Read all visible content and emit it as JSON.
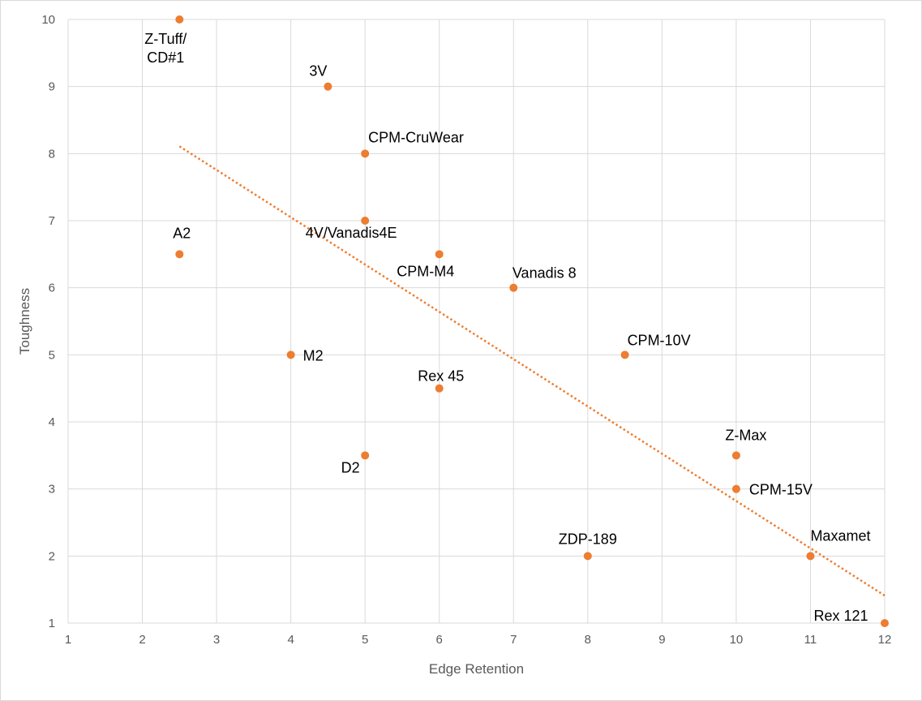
{
  "chart_data": {
    "type": "scatter",
    "title": "",
    "xlabel": "Edge Retention",
    "ylabel": "Toughness",
    "xlim": [
      1,
      12
    ],
    "ylim": [
      1,
      10
    ],
    "xticks": [
      1,
      2,
      3,
      4,
      5,
      6,
      7,
      8,
      9,
      10,
      11,
      12
    ],
    "yticks": [
      1,
      2,
      3,
      4,
      5,
      6,
      7,
      8,
      9,
      10
    ],
    "grid": true,
    "point_color": "#ED7D31",
    "trendline": {
      "type": "linear",
      "style": "dotted",
      "color": "#ED7D31"
    },
    "points": [
      {
        "label": "Z-Tuff/\nCD#1",
        "x": 2.5,
        "y": 10
      },
      {
        "label": "3V",
        "x": 4.5,
        "y": 9
      },
      {
        "label": "CPM-CruWear",
        "x": 5,
        "y": 8
      },
      {
        "label": "4V/Vanadis4E",
        "x": 5,
        "y": 7
      },
      {
        "label": "A2",
        "x": 2.5,
        "y": 6.5
      },
      {
        "label": "CPM-M4",
        "x": 6,
        "y": 6.5
      },
      {
        "label": "Vanadis 8",
        "x": 7,
        "y": 6
      },
      {
        "label": "M2",
        "x": 4,
        "y": 5
      },
      {
        "label": "CPM-10V",
        "x": 8.5,
        "y": 5
      },
      {
        "label": "Rex 45",
        "x": 6,
        "y": 4.5
      },
      {
        "label": "D2",
        "x": 5,
        "y": 3.5
      },
      {
        "label": "Z-Max",
        "x": 10,
        "y": 3.5
      },
      {
        "label": "CPM-15V",
        "x": 10,
        "y": 3
      },
      {
        "label": "ZDP-189",
        "x": 8,
        "y": 2
      },
      {
        "label": "Maxamet",
        "x": 11,
        "y": 2
      },
      {
        "label": "Rex 121",
        "x": 12,
        "y": 1
      }
    ]
  }
}
